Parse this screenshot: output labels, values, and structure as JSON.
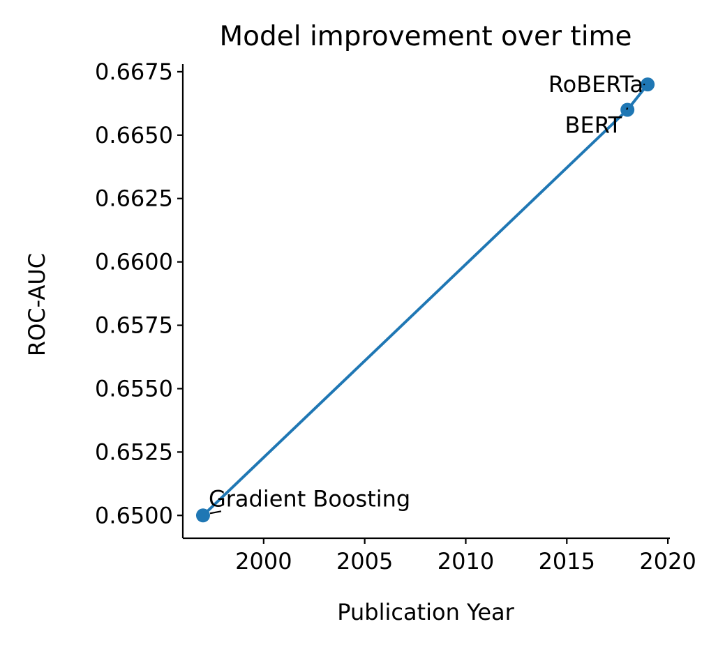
{
  "chart_data": {
    "type": "line",
    "title": "Model improvement over time",
    "xlabel": "Publication Year",
    "ylabel": "ROC-AUC",
    "xlim": [
      1996.0,
      2020.1
    ],
    "ylim": [
      0.6491,
      0.6678
    ],
    "x_ticks": [
      2000,
      2005,
      2010,
      2015,
      2020
    ],
    "y_ticks": [
      0.65,
      0.6525,
      0.655,
      0.6575,
      0.66,
      0.6625,
      0.665,
      0.6675
    ],
    "x_tick_labels": [
      "2000",
      "2005",
      "2010",
      "2015",
      "2020"
    ],
    "y_tick_labels": [
      "0.6500",
      "0.6525",
      "0.6550",
      "0.6575",
      "0.6600",
      "0.6625",
      "0.6650",
      "0.6675"
    ],
    "grid": false,
    "color": "#1f77b4",
    "series": [
      {
        "x": [
          1997,
          2018,
          2019
        ],
        "y": [
          0.65,
          0.666,
          0.667
        ],
        "labels": [
          "Gradient Boosting",
          "BERT",
          "RoBERTa"
        ]
      }
    ]
  }
}
